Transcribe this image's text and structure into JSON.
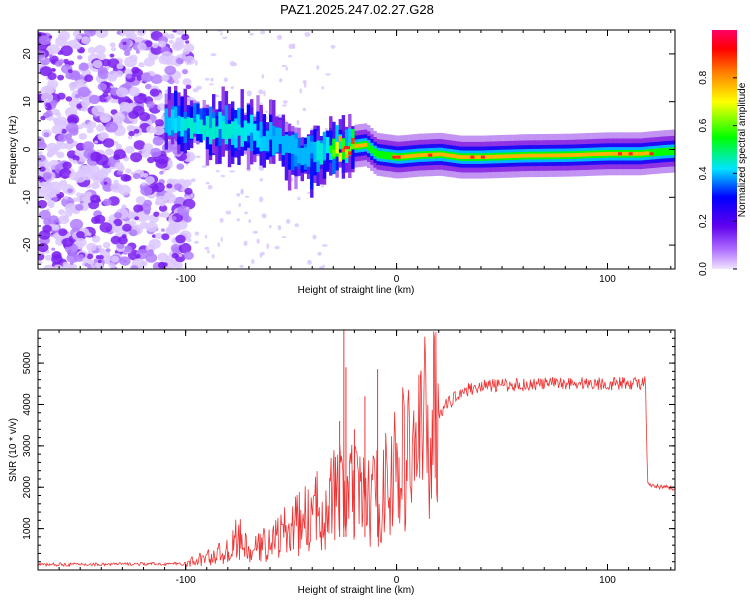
{
  "title": "PAZ1.2025.247.02.27.G28",
  "chart_data": [
    {
      "type": "heatmap",
      "xlabel": "Height of straight line (km)",
      "ylabel": "Frequency (Hz)",
      "xlim": [
        -170,
        132
      ],
      "ylim": [
        -25,
        25
      ],
      "xticks": [
        -100,
        0,
        100
      ],
      "yticks": [
        -20,
        -10,
        0,
        10,
        20
      ],
      "colorbar": {
        "label": "Normalized spectral amplitude",
        "range": [
          0,
          1
        ],
        "ticks": [
          "0.0",
          "0.2",
          "0.4",
          "0.6",
          "0.8"
        ],
        "colormap": "rainbow",
        "colors": [
          "#e8d8ff",
          "#8a2be2",
          "#0000ff",
          "#00e5ff",
          "#00ff00",
          "#ffff00",
          "#ff8000",
          "#ff0000",
          "#ff0066"
        ]
      },
      "ridge": [
        {
          "x": -110,
          "f": 6.5,
          "a": 0.35
        },
        {
          "x": -100,
          "f": 5.8,
          "a": 0.4
        },
        {
          "x": -90,
          "f": 4.2,
          "a": 0.4
        },
        {
          "x": -80,
          "f": 4.8,
          "a": 0.4
        },
        {
          "x": -70,
          "f": 4.0,
          "a": 0.38
        },
        {
          "x": -60,
          "f": 2.0,
          "a": 0.35
        },
        {
          "x": -50,
          "f": -0.5,
          "a": 0.35
        },
        {
          "x": -40,
          "f": -1.5,
          "a": 0.35
        },
        {
          "x": -30,
          "f": 0.3,
          "a": 0.55
        },
        {
          "x": -25,
          "f": 0.4,
          "a": 0.9
        },
        {
          "x": -15,
          "f": 1.0,
          "a": 0.7
        },
        {
          "x": -10,
          "f": -1.0,
          "a": 0.6
        },
        {
          "x": 0,
          "f": -1.6,
          "a": 0.75
        },
        {
          "x": 10,
          "f": -1.2,
          "a": 0.75
        },
        {
          "x": 20,
          "f": -1.0,
          "a": 0.75
        },
        {
          "x": 30,
          "f": -1.6,
          "a": 0.75
        },
        {
          "x": 40,
          "f": -1.6,
          "a": 0.8
        },
        {
          "x": 60,
          "f": -1.3,
          "a": 0.8
        },
        {
          "x": 80,
          "f": -1.2,
          "a": 0.75
        },
        {
          "x": 100,
          "f": -0.9,
          "a": 0.8
        },
        {
          "x": 115,
          "f": -0.9,
          "a": 0.8
        },
        {
          "x": 125,
          "f": -0.5,
          "a": 0.55
        },
        {
          "x": 132,
          "f": -0.3,
          "a": 0.5
        }
      ]
    },
    {
      "type": "line",
      "xlabel": "Height of straight line (km)",
      "ylabel": "SNR (10 * v/v)",
      "xlim": [
        -170,
        132
      ],
      "ylim": [
        0,
        5800
      ],
      "xticks": [
        -100,
        0,
        100
      ],
      "yticks": [
        1000,
        2000,
        3000,
        4000,
        5000
      ],
      "color": "#ee3333",
      "envelope": [
        {
          "x": -170,
          "y": 130
        },
        {
          "x": -100,
          "y": 150
        },
        {
          "x": -90,
          "y": 300
        },
        {
          "x": -80,
          "y": 450
        },
        {
          "x": -75,
          "y": 800
        },
        {
          "x": -70,
          "y": 400
        },
        {
          "x": -60,
          "y": 700
        },
        {
          "x": -50,
          "y": 1000
        },
        {
          "x": -40,
          "y": 1300
        },
        {
          "x": -30,
          "y": 1800
        },
        {
          "x": -20,
          "y": 1800
        },
        {
          "x": -10,
          "y": 1700
        },
        {
          "x": 0,
          "y": 2400
        },
        {
          "x": 10,
          "y": 3100
        },
        {
          "x": 20,
          "y": 3800
        },
        {
          "x": 30,
          "y": 4300
        },
        {
          "x": 40,
          "y": 4450
        },
        {
          "x": 60,
          "y": 4480
        },
        {
          "x": 80,
          "y": 4520
        },
        {
          "x": 100,
          "y": 4500
        },
        {
          "x": 115,
          "y": 4520
        },
        {
          "x": 118,
          "y": 4550
        },
        {
          "x": 119,
          "y": 2050
        },
        {
          "x": 125,
          "y": 2000
        },
        {
          "x": 132,
          "y": 1980
        }
      ],
      "spikes": [
        {
          "x": -25,
          "y": 5800
        },
        {
          "x": -24,
          "y": 4900
        },
        {
          "x": -9,
          "y": 4850
        },
        {
          "x": -15,
          "y": 4200
        },
        {
          "x": -27,
          "y": 3600
        },
        {
          "x": -20,
          "y": 3400
        }
      ]
    }
  ]
}
